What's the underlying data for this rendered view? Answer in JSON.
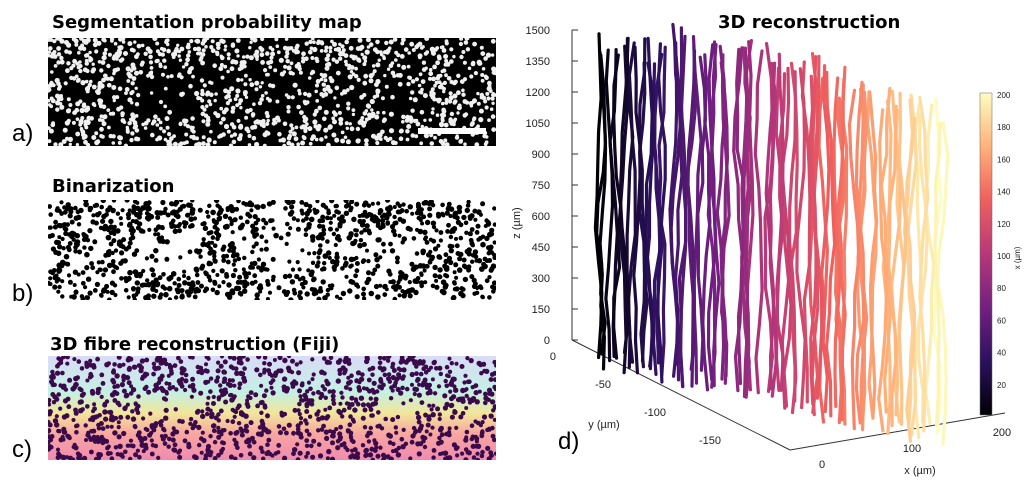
{
  "panels": {
    "a": {
      "label": "a)",
      "title": "Segmentation probability map"
    },
    "b": {
      "label": "b)",
      "title": "Binarization"
    },
    "c": {
      "label": "c)",
      "title": "3D fibre reconstruction (Fiji)"
    },
    "d": {
      "label": "d)",
      "title": "3D reconstruction"
    }
  },
  "axes": {
    "z": {
      "label": "z (µm)",
      "ticks": [
        "1500",
        "1350",
        "1200",
        "1050",
        "900",
        "750",
        "600",
        "450",
        "300",
        "150",
        "0"
      ]
    },
    "y": {
      "label": "y (µm)",
      "ticks": [
        "0",
        "-50",
        "-100",
        "-150"
      ]
    },
    "x": {
      "label": "x (µm)",
      "ticks": [
        "0",
        "100",
        "200"
      ]
    }
  },
  "colorbar": {
    "label": "x (µm)",
    "ticks": [
      "200",
      "180",
      "160",
      "140",
      "120",
      "100",
      "80",
      "60",
      "40",
      "20"
    ],
    "colors": [
      "#000004",
      "#2c115f",
      "#721f81",
      "#b73779",
      "#f1605d",
      "#feb078",
      "#fcfdbf"
    ]
  }
}
